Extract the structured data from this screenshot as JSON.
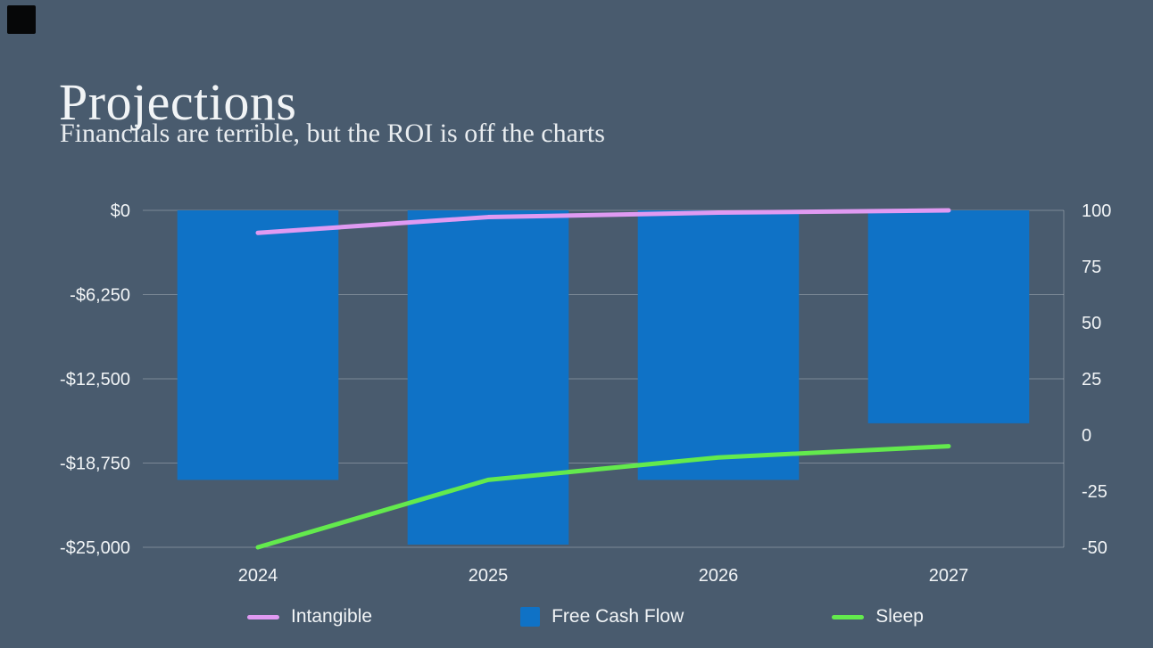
{
  "slide": {
    "title": "Projections",
    "subtitle": "Financials are terrible, but the ROI is off the charts"
  },
  "colors": {
    "background": "#495b6e",
    "text": "#f2f5f7",
    "grid": "rgba(255,255,255,0.28)",
    "bar": "#0f72c6",
    "intangible_line": "#e09af2",
    "sleep_line": "#63ea4d"
  },
  "chart_data": {
    "type": "bar",
    "subtype": "combo-bar-line",
    "categories": [
      "2024",
      "2025",
      "2026",
      "2027"
    ],
    "series": [
      {
        "name": "Free Cash Flow",
        "render": "bar",
        "axis": "left",
        "color": "#0f72c6",
        "values": [
          -20000,
          -24800,
          -20000,
          -15800
        ]
      },
      {
        "name": "Intangible",
        "render": "line",
        "axis": "right",
        "color": "#e09af2",
        "values": [
          90,
          97,
          99,
          100
        ]
      },
      {
        "name": "Sleep",
        "render": "line",
        "axis": "right",
        "color": "#63ea4d",
        "values": [
          -50,
          -20,
          -10,
          -5
        ]
      }
    ],
    "left_axis": {
      "ticks": [
        "$0",
        "-$6,250",
        "-$12,500",
        "-$18,750",
        "-$25,000"
      ],
      "max": 0,
      "min": -25000
    },
    "right_axis": {
      "ticks": [
        "100",
        "75",
        "50",
        "25",
        "0",
        "-25",
        "-50"
      ],
      "max": 100,
      "min": -50
    },
    "grid": "horizontal",
    "legend_position": "bottom",
    "legend": [
      {
        "label": "Intangible",
        "swatch": "line",
        "color": "#e09af2"
      },
      {
        "label": "Free Cash Flow",
        "swatch": "square",
        "color": "#0f72c6"
      },
      {
        "label": "Sleep",
        "swatch": "line",
        "color": "#63ea4d"
      }
    ]
  }
}
